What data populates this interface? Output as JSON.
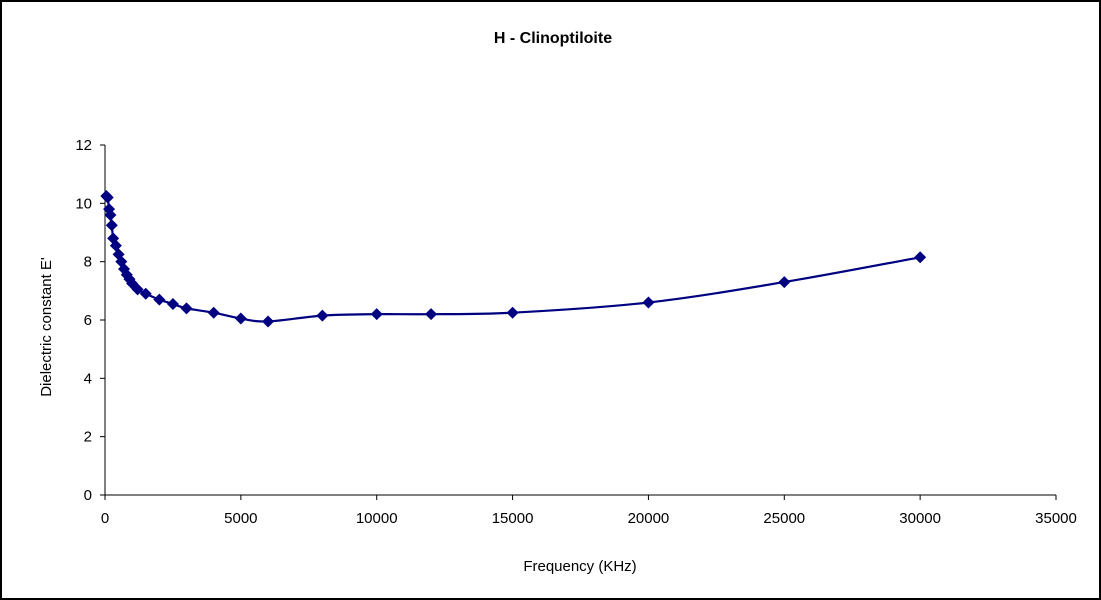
{
  "chart_data": {
    "type": "scatter",
    "title": "H - Clinoptiloite",
    "xlabel": "Frequency (KHz)",
    "ylabel": "Dielectric constant E'",
    "xlim": [
      0,
      35000
    ],
    "ylim": [
      0,
      12
    ],
    "xticks": [
      0,
      5000,
      10000,
      15000,
      20000,
      25000,
      30000,
      35000
    ],
    "yticks": [
      0,
      2,
      4,
      6,
      8,
      10,
      12
    ],
    "grid": false,
    "legend": "none",
    "line": "smooth",
    "marker": "diamond",
    "color": "#000080",
    "series": [
      {
        "x": [
          50,
          100,
          150,
          200,
          250,
          300,
          400,
          500,
          600,
          700,
          800,
          900,
          1000,
          1200,
          1500,
          2000,
          2500,
          3000,
          4000,
          5000,
          6000,
          8000,
          10000,
          12000,
          15000,
          20000,
          25000,
          30000
        ],
        "y": [
          10.25,
          10.2,
          9.8,
          9.6,
          9.25,
          8.8,
          8.55,
          8.25,
          8.0,
          7.75,
          7.55,
          7.4,
          7.25,
          7.05,
          6.9,
          6.7,
          6.55,
          6.4,
          6.25,
          6.05,
          5.95,
          6.15,
          6.2,
          6.2,
          6.25,
          6.6,
          7.3,
          8.15
        ]
      }
    ]
  }
}
